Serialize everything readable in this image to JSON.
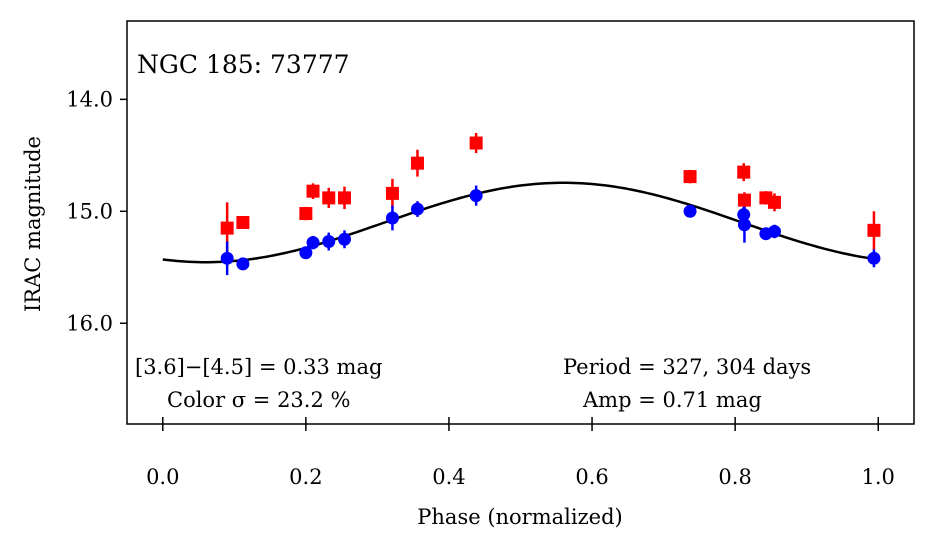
{
  "chart_data": {
    "type": "scatter",
    "title": "NGC 185:  73777",
    "xlabel": "Phase (normalized)",
    "ylabel": "IRAC magnitude",
    "xlim": [
      -0.05,
      1.05
    ],
    "ylim": [
      16.9,
      13.3
    ],
    "y_inverted": true,
    "x_ticks": [
      0.0,
      0.2,
      0.4,
      0.6,
      0.8,
      1.0
    ],
    "x_tick_labels": [
      "0.0",
      "0.2",
      "0.4",
      "0.6",
      "0.8",
      "1.0"
    ],
    "y_ticks": [
      14.0,
      15.0,
      16.0
    ],
    "y_tick_labels": [
      "14.0",
      "15.0",
      "16.0"
    ],
    "grid": false,
    "series": [
      {
        "color": "#ff0000",
        "marker": "square",
        "x": [
          0.09,
          0.112,
          0.2,
          0.21,
          0.232,
          0.254,
          0.321,
          0.356,
          0.438,
          0.737,
          0.812,
          0.813,
          0.843,
          0.855,
          0.994
        ],
        "y": [
          15.15,
          15.1,
          15.02,
          14.82,
          14.88,
          14.88,
          14.84,
          14.57,
          14.39,
          14.69,
          14.65,
          14.9,
          14.88,
          14.92,
          15.17
        ],
        "yerr": [
          0.23,
          0.05,
          0.06,
          0.07,
          0.09,
          0.1,
          0.13,
          0.12,
          0.09,
          0.06,
          0.08,
          0.07,
          0.06,
          0.08,
          0.17
        ]
      },
      {
        "color": "#0000ff",
        "marker": "circle",
        "x": [
          0.09,
          0.112,
          0.2,
          0.21,
          0.232,
          0.254,
          0.321,
          0.356,
          0.438,
          0.737,
          0.812,
          0.813,
          0.843,
          0.855,
          0.994
        ],
        "y": [
          15.42,
          15.47,
          15.37,
          15.28,
          15.27,
          15.25,
          15.06,
          14.98,
          14.86,
          15.0,
          15.03,
          15.12,
          15.2,
          15.18,
          15.42
        ],
        "yerr": [
          0.15,
          0.04,
          0.05,
          0.06,
          0.08,
          0.08,
          0.11,
          0.07,
          0.09,
          0.04,
          0.07,
          0.16,
          0.05,
          0.06,
          0.08
        ]
      }
    ],
    "fit_curve": {
      "color": "#000000",
      "mean": 15.1,
      "amplitude": 0.355,
      "peak_phase": 0.56
    },
    "annotations": {
      "color_diff": "[3.6]−[4.5] = 0.33 mag",
      "color_sigma": "Color σ = 23.2 %",
      "period": "Period = 327, 304 days",
      "amp": "Amp = 0.71 mag"
    }
  }
}
